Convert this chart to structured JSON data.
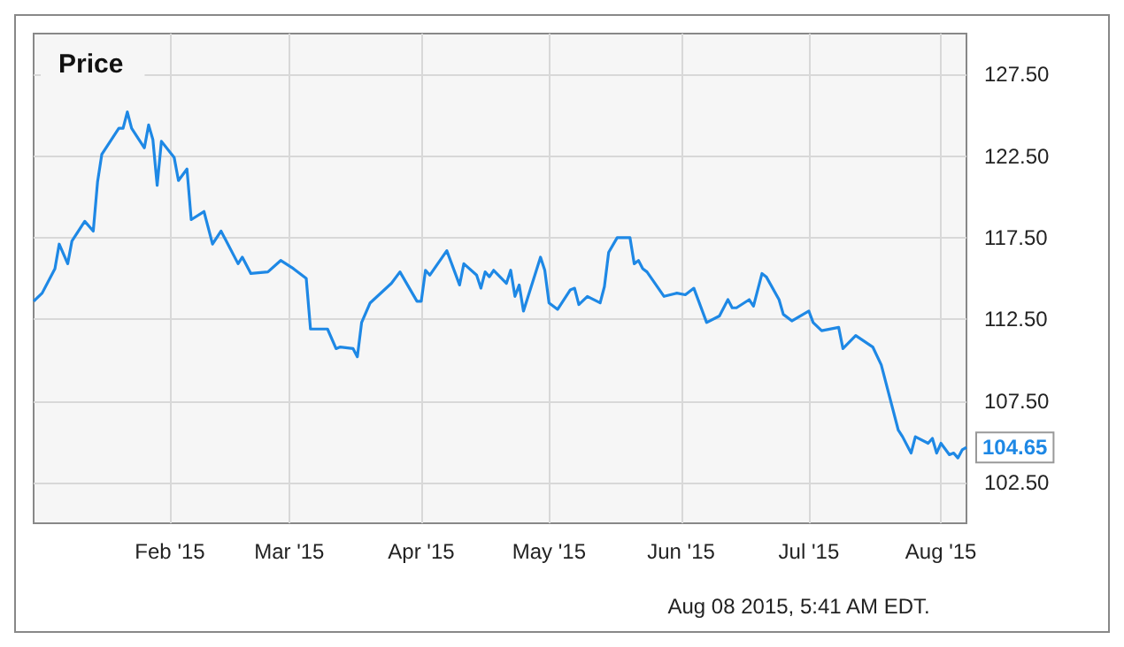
{
  "chart_data": {
    "type": "line",
    "title": "Price",
    "x": [
      "2014-12-31",
      "2015-01-02",
      "2015-01-05",
      "2015-01-06",
      "2015-01-08",
      "2015-01-09",
      "2015-01-12",
      "2015-01-14",
      "2015-01-15",
      "2015-01-16",
      "2015-01-20",
      "2015-01-21",
      "2015-01-22",
      "2015-01-23",
      "2015-01-26",
      "2015-01-27",
      "2015-01-28",
      "2015-01-29",
      "2015-01-30",
      "2015-02-02",
      "2015-02-03",
      "2015-02-05",
      "2015-02-06",
      "2015-02-09",
      "2015-02-11",
      "2015-02-13",
      "2015-02-17",
      "2015-02-18",
      "2015-02-20",
      "2015-02-24",
      "2015-02-27",
      "2015-03-02",
      "2015-03-05",
      "2015-03-06",
      "2015-03-10",
      "2015-03-12",
      "2015-03-13",
      "2015-03-16",
      "2015-03-17",
      "2015-03-18",
      "2015-03-20",
      "2015-03-25",
      "2015-03-27",
      "2015-03-31",
      "2015-04-01",
      "2015-04-02",
      "2015-04-03",
      "2015-04-07",
      "2015-04-10",
      "2015-04-11",
      "2015-04-14",
      "2015-04-15",
      "2015-04-16",
      "2015-04-17",
      "2015-04-18",
      "2015-04-21",
      "2015-04-22",
      "2015-04-23",
      "2015-04-24",
      "2015-04-25",
      "2015-04-29",
      "2015-04-30",
      "2015-05-01",
      "2015-05-03",
      "2015-05-06",
      "2015-05-07",
      "2015-05-08",
      "2015-05-10",
      "2015-05-13",
      "2015-05-14",
      "2015-05-15",
      "2015-05-17",
      "2015-05-20",
      "2015-05-21",
      "2015-05-22",
      "2015-05-23",
      "2015-05-24",
      "2015-05-28",
      "2015-05-31",
      "2015-06-02",
      "2015-06-04",
      "2015-06-07",
      "2015-06-10",
      "2015-06-12",
      "2015-06-13",
      "2015-06-14",
      "2015-06-17",
      "2015-06-18",
      "2015-06-20",
      "2015-06-21",
      "2015-06-24",
      "2015-06-25",
      "2015-06-27",
      "2015-07-01",
      "2015-07-02",
      "2015-07-04",
      "2015-07-08",
      "2015-07-09",
      "2015-07-12",
      "2015-07-16",
      "2015-07-18",
      "2015-07-22",
      "2015-07-23",
      "2015-07-25",
      "2015-07-26",
      "2015-07-29",
      "2015-07-30",
      "2015-07-31",
      "2015-08-01",
      "2015-08-03",
      "2015-08-04",
      "2015-08-05",
      "2015-08-06",
      "2015-08-07"
    ],
    "series": [
      {
        "color": "#1e88e5",
        "values": [
          113.6,
          114.1,
          115.6,
          117.1,
          115.9,
          117.3,
          118.5,
          117.9,
          120.9,
          122.6,
          124.2,
          124.2,
          125.2,
          124.2,
          123.0,
          124.4,
          123.5,
          120.7,
          123.4,
          122.4,
          121.0,
          121.7,
          118.6,
          119.1,
          117.1,
          117.9,
          115.9,
          116.3,
          115.3,
          115.4,
          116.1,
          115.6,
          115.0,
          111.9,
          111.9,
          110.7,
          110.8,
          110.7,
          110.2,
          112.3,
          113.5,
          114.7,
          115.4,
          113.6,
          113.6,
          115.5,
          115.2,
          116.7,
          114.6,
          115.9,
          115.2,
          114.4,
          115.4,
          115.1,
          115.5,
          114.7,
          115.5,
          113.9,
          114.6,
          113.0,
          116.3,
          115.5,
          113.5,
          113.1,
          114.3,
          114.4,
          113.4,
          113.9,
          113.5,
          114.5,
          116.6,
          117.5,
          117.5,
          115.9,
          116.1,
          115.6,
          115.4,
          113.9,
          114.1,
          114.0,
          114.4,
          112.3,
          112.7,
          113.7,
          113.2,
          113.2,
          113.7,
          113.3,
          115.3,
          115.1,
          113.7,
          112.8,
          112.4,
          113.0,
          112.3,
          111.8,
          112.0,
          110.7,
          111.5,
          110.8,
          109.7,
          105.7,
          105.3,
          104.3,
          105.3,
          104.9,
          105.2,
          104.3,
          104.9,
          104.2,
          104.3,
          104.0,
          104.5,
          104.65
        ]
      }
    ],
    "xlim": [
      "2014-12-31",
      "2015-08-07"
    ],
    "xticks": [
      {
        "value": "2015-02-01",
        "label": "Feb '15"
      },
      {
        "value": "2015-03-01",
        "label": "Mar '15"
      },
      {
        "value": "2015-04-01",
        "label": "Apr '15"
      },
      {
        "value": "2015-05-01",
        "label": "May '15"
      },
      {
        "value": "2015-06-01",
        "label": "Jun '15"
      },
      {
        "value": "2015-07-01",
        "label": "Jul '15"
      },
      {
        "value": "2015-08-01",
        "label": "Aug '15"
      }
    ],
    "ylim": [
      100,
      130
    ],
    "yticks": [
      {
        "value": 102.5,
        "label": "102.50"
      },
      {
        "value": 107.5,
        "label": "107.50"
      },
      {
        "value": 112.5,
        "label": "112.50"
      },
      {
        "value": 117.5,
        "label": "117.50"
      },
      {
        "value": 122.5,
        "label": "122.50"
      },
      {
        "value": 127.5,
        "label": "127.50"
      }
    ],
    "grid": true,
    "marker": "none",
    "line_style": "solid",
    "annotations": [
      {
        "text": "104.65",
        "x": "2015-08-07",
        "y": 104.65
      },
      "Aug 08 2015, 5:41 AM EDT."
    ]
  }
}
